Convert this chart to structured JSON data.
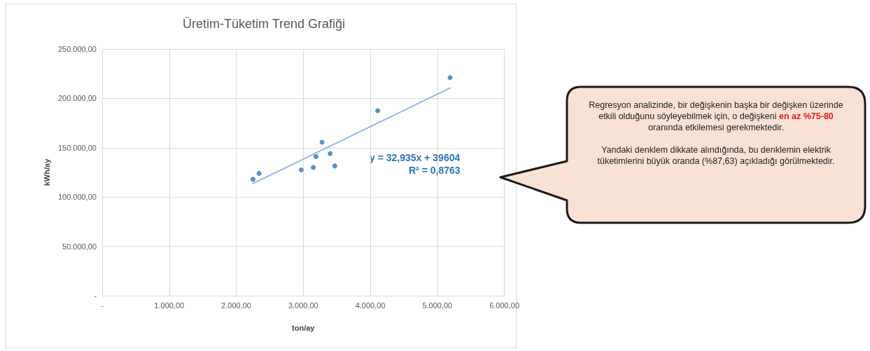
{
  "chart_data": {
    "type": "scatter",
    "title": "Üretim-Tüketim Trend Grafiği",
    "xlabel": "ton/ay",
    "ylabel": "kWh/ay",
    "marker": "circle",
    "grid": true,
    "xlim": [
      0,
      6000
    ],
    "ylim": [
      0,
      250000
    ],
    "xticks": [
      {
        "value": 0,
        "label": "-"
      },
      {
        "value": 1000,
        "label": "1.000,00"
      },
      {
        "value": 2000,
        "label": "2.000,00"
      },
      {
        "value": 3000,
        "label": "3.000,00"
      },
      {
        "value": 4000,
        "label": "4.000,00"
      },
      {
        "value": 5000,
        "label": "5.000,00"
      },
      {
        "value": 6000,
        "label": "6.000,00"
      }
    ],
    "yticks": [
      {
        "value": 0,
        "label": "-"
      },
      {
        "value": 50000,
        "label": "50.000,00"
      },
      {
        "value": 100000,
        "label": "100.000,00"
      },
      {
        "value": 150000,
        "label": "150.000,00"
      },
      {
        "value": 200000,
        "label": "200.000,00"
      },
      {
        "value": 250000,
        "label": "250.000,00"
      }
    ],
    "series": [
      {
        "type": "scatter",
        "color": "#2e75b6",
        "x": [
          2250,
          2340,
          2970,
          3150,
          3190,
          3280,
          3400,
          3470,
          4110,
          5190
        ],
        "values": [
          118000,
          124000,
          127500,
          130000,
          141000,
          155500,
          144000,
          131500,
          187500,
          221000
        ]
      },
      {
        "type": "line",
        "color": "#8fb4dc",
        "line_style": "dotted",
        "marker": "none",
        "x": [
          2250,
          5190
        ],
        "values": [
          113700,
          210500
        ]
      }
    ],
    "annotations": [
      "y = 32,935x + 39604",
      "R² = 0,8763",
      "Regresyon analizinde, bir değişkenin başka bir değişken üzerinde etkili olduğunu söyleyebilmek için, o değişkeni ",
      "en az %75-80",
      " oranında etkilemesi gerekmektedir.",
      "Yandaki denklem dikkate alındığında, bu denklemin elektrik tüketimlerini büyük oranda (%87,63) açıkladığı görülmektedir."
    ]
  }
}
